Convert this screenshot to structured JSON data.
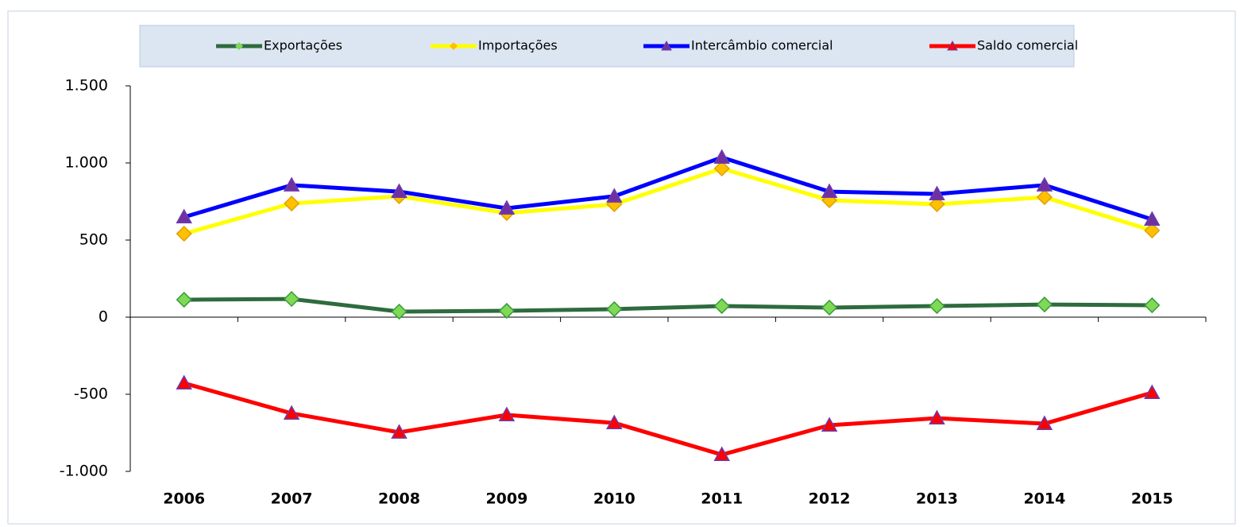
{
  "chart_data": {
    "type": "line",
    "categories": [
      "2006",
      "2007",
      "2008",
      "2009",
      "2010",
      "2011",
      "2012",
      "2013",
      "2014",
      "2015"
    ],
    "series": [
      {
        "name": "Exportações",
        "color": "#2e6b3e",
        "marker": "diamond",
        "marker_color": "#7ed957",
        "values": [
          113,
          118,
          36,
          41,
          52,
          72,
          62,
          72,
          82,
          77
        ]
      },
      {
        "name": "Importações",
        "color": "#ffff00",
        "marker": "diamond",
        "marker_color": "#ffc000",
        "values": [
          541,
          737,
          784,
          675,
          732,
          964,
          758,
          732,
          778,
          562
        ]
      },
      {
        "name": "Intercâmbio comercial",
        "color": "#0000ff",
        "marker": "triangle",
        "marker_color": "#7030a0",
        "values": [
          649,
          856,
          814,
          706,
          784,
          1036,
          814,
          799,
          856,
          634
        ]
      },
      {
        "name": "Saldo comercial",
        "color": "#ff0000",
        "marker": "triangle",
        "marker_color": "#ff0000",
        "values": [
          -428,
          -624,
          -747,
          -634,
          -686,
          -892,
          -701,
          -655,
          -691,
          -490
        ]
      }
    ],
    "ylim": [
      -1000,
      1500
    ],
    "yticks": [
      {
        "value": -1000,
        "label": "-1.000"
      },
      -500,
      0,
      500,
      {
        "value": 1000,
        "label": "1.000"
      },
      {
        "value": 1500,
        "label": "1.500"
      }
    ],
    "legend": "top"
  }
}
